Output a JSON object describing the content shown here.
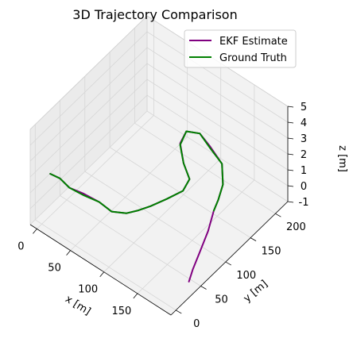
{
  "chart_data": {
    "type": "line",
    "projection": "3d",
    "title": "3D Trajectory Comparison",
    "xlabel": "x [m]",
    "ylabel": "y [m]",
    "zlabel": "z [m]",
    "xlim": [
      -10,
      200
    ],
    "ylim": [
      -10,
      225
    ],
    "zlim": [
      -1,
      5
    ],
    "x_ticks": [
      0,
      50,
      100,
      150
    ],
    "y_ticks": [
      0,
      50,
      100,
      150,
      200
    ],
    "z_ticks": [
      -1,
      0,
      1,
      2,
      3,
      4,
      5
    ],
    "grid": true,
    "legend_position": "top-right",
    "colors": {
      "pane": "#f2f2f2",
      "grid": "#d6d6d6",
      "ekf": "#800080",
      "truth": "#008000"
    },
    "series": [
      {
        "name": "EKF Estimate",
        "color": "#800080",
        "points": [
          [
            5,
            10,
            2.0
          ],
          [
            18,
            12,
            2.0
          ],
          [
            35,
            8,
            2.0
          ],
          [
            55,
            10,
            2.1
          ],
          [
            75,
            14,
            2.0
          ],
          [
            95,
            12,
            2.0
          ],
          [
            110,
            22,
            2.0
          ],
          [
            118,
            35,
            2.0
          ],
          [
            125,
            50,
            2.0
          ],
          [
            133,
            72,
            2.0
          ],
          [
            140,
            95,
            2.0
          ],
          [
            135,
            115,
            2.0
          ],
          [
            115,
            130,
            2.0
          ],
          [
            95,
            150,
            2.1
          ],
          [
            88,
            172,
            2.0
          ],
          [
            102,
            180,
            2.0
          ],
          [
            125,
            170,
            2.1
          ],
          [
            150,
            160,
            2.0
          ],
          [
            170,
            135,
            2.0
          ],
          [
            180,
            112,
            2.0
          ],
          [
            186,
            95,
            2.0
          ],
          [
            185,
            85,
            1.0
          ],
          [
            183,
            72,
            0.1
          ],
          [
            182,
            58,
            -0.7
          ],
          [
            186,
            45,
            -0.95
          ]
        ]
      },
      {
        "name": "Ground Truth",
        "color": "#008000",
        "points": [
          [
            5,
            10,
            2.0
          ],
          [
            18,
            12,
            2.0
          ],
          [
            35,
            8,
            2.0
          ],
          [
            55,
            10,
            2.0
          ],
          [
            75,
            14,
            2.0
          ],
          [
            95,
            12,
            2.0
          ],
          [
            110,
            22,
            2.0
          ],
          [
            118,
            35,
            2.0
          ],
          [
            125,
            50,
            2.0
          ],
          [
            133,
            72,
            2.0
          ],
          [
            140,
            95,
            2.0
          ],
          [
            135,
            115,
            2.0
          ],
          [
            115,
            130,
            2.0
          ],
          [
            95,
            150,
            2.0
          ],
          [
            88,
            172,
            2.0
          ],
          [
            102,
            180,
            2.0
          ],
          [
            125,
            170,
            2.0
          ],
          [
            150,
            160,
            2.0
          ],
          [
            170,
            135,
            2.0
          ],
          [
            180,
            112,
            2.0
          ],
          [
            186,
            95,
            2.0
          ]
        ]
      }
    ]
  }
}
